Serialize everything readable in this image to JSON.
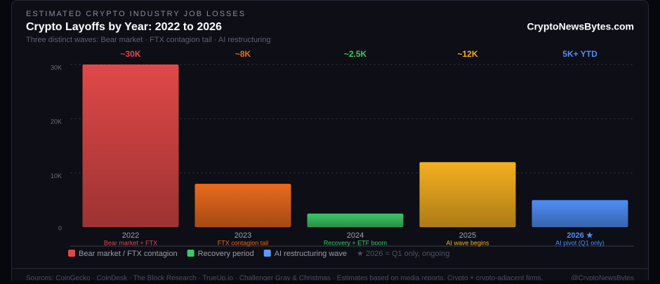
{
  "kicker": "ESTIMATED CRYPTO INDUSTRY JOB LOSSES",
  "brand": "CryptoNewsBytes.com",
  "note": "★ 2026 = Q1 only, ongoing",
  "footer": {
    "sources": "Sources: CoinGecko · CoinDesk · The Block Research · TrueUp.io · Challenger Gray & Christmas · Estimates based on media reports. Crypto + crypto-adjacent firms.",
    "handle": "@CryptoNewsBytes"
  },
  "legend": [
    {
      "name": "Bear market / FTX contagion",
      "color": "#e04848"
    },
    {
      "name": "Recovery period",
      "color": "#3cc866"
    },
    {
      "name": "AI restructuring wave",
      "color": "#5a9cf5"
    }
  ],
  "chart_data": {
    "type": "bar",
    "title": "Crypto Layoffs by Year: 2022 to 2026",
    "subtitle": "Three distinct waves: Bear market · FTX contagion tail · AI restructuring",
    "categories": [
      "2022",
      "2023",
      "2024",
      "2025",
      "2026 ★"
    ],
    "annotations": [
      "Bear market + FTX",
      "FTX contagion tail",
      "Recovery + ETF boom",
      "AI wave begins",
      "AI pivot (Q1 only)"
    ],
    "values": [
      30000,
      8000,
      2500,
      12000,
      5000
    ],
    "value_labels": [
      "~30K",
      "~8K",
      "~2.5K",
      "~12K",
      "5K+ YTD"
    ],
    "colors": [
      "#e04848",
      "#ea6a1c",
      "#3cc866",
      "#f5b020",
      "#4f8ef5"
    ],
    "ylim": [
      0,
      30000
    ],
    "yticks": [
      0,
      {
        "value": 10000,
        "label": "10K"
      },
      {
        "value": 20000,
        "label": "20K"
      },
      {
        "value": 30000,
        "label": "30K"
      }
    ],
    "grid": true
  }
}
